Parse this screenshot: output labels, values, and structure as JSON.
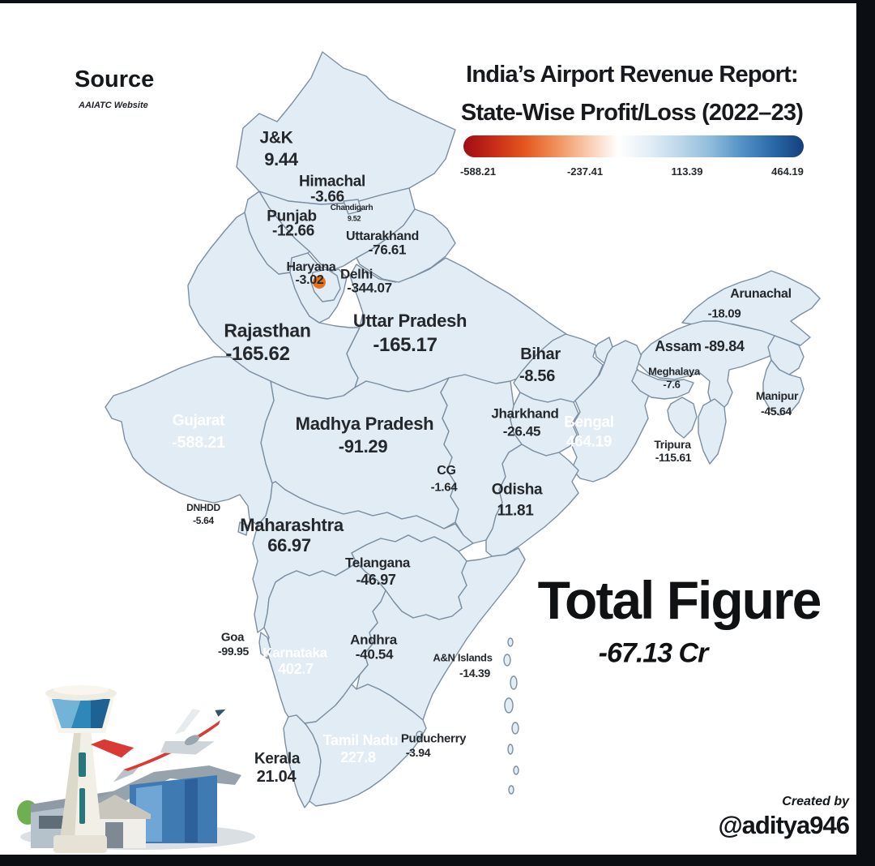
{
  "frame": {
    "bg": "#0b0e12",
    "card_bg": "#ffffff"
  },
  "source": {
    "label": "Source",
    "sub": "AAIATC Website"
  },
  "title": {
    "line1": "India’s Airport Revenue Report:",
    "line2": "State-Wise Profit/Loss (2022–23)"
  },
  "legend": {
    "ticks": [
      "-588.21",
      "-237.41",
      "113.39",
      "464.19"
    ],
    "gradient": [
      "#9d0e15",
      "#c92c18",
      "#e4581f",
      "#f0905c",
      "#f9c9ad",
      "#ffffff",
      "#e3eef6",
      "#bcd7ea",
      "#8fbcdb",
      "#5391c6",
      "#2a69a8",
      "#143f7c"
    ]
  },
  "total": {
    "label": "Total Figure",
    "value": "-67.13 Cr"
  },
  "credit": {
    "line1": "Created by",
    "line2": "@aditya946"
  },
  "map": {
    "delhi_dot": "#e8721c",
    "other_regions": {
      "sikkim": "#d0e0ed",
      "nagaland": "#cddde9",
      "mizoram": "#dbe6ee",
      "an_islands": "#e2ecf4",
      "chandigarh_patch": "#bdd5e7",
      "delhi_patch": "#f0b493",
      "dnhdd_patch": "#f3cdb2",
      "goa_patch": "#f6d8c3",
      "puducherry_dot": "#dbe7f1"
    },
    "states": [
      {
        "id": "jk",
        "name": "J&K",
        "value": "9.44",
        "fill": "#c5d8e7"
      },
      {
        "id": "himachal",
        "name": "Himachal",
        "value": "-3.66",
        "fill": "#caddea"
      },
      {
        "id": "chandigarh",
        "name": "Chandigarh",
        "value": "9.52",
        "fill": "#bdd5e7"
      },
      {
        "id": "punjab",
        "name": "Punjab",
        "value": "-12.66",
        "fill": "#cadce9"
      },
      {
        "id": "uttarakhand",
        "name": "Uttarakhand",
        "value": "-76.61",
        "fill": "#f8f1ea"
      },
      {
        "id": "haryana",
        "name": "Haryana",
        "value": "-3.02",
        "fill": "#d3e2ee"
      },
      {
        "id": "delhi",
        "name": "Delhi",
        "value": "-344.07",
        "fill": "#f0b493"
      },
      {
        "id": "rajasthan",
        "name": "Rajasthan",
        "value": "-165.62",
        "fill": "#f3b496"
      },
      {
        "id": "up",
        "name": "Uttar Pradesh",
        "value": "-165.17",
        "fill": "#f2b294"
      },
      {
        "id": "bihar",
        "name": "Bihar",
        "value": "-8.56",
        "fill": "#c6daeb"
      },
      {
        "id": "gujarat",
        "name": "Gujarat",
        "value": "-588.21",
        "fill": "#b2131a"
      },
      {
        "id": "mp",
        "name": "Madhya Pradesh",
        "value": "-91.29",
        "fill": "#f9e9df"
      },
      {
        "id": "jharkhand",
        "name": "Jharkhand",
        "value": "-26.45",
        "fill": "#dfeaf3"
      },
      {
        "id": "bengal",
        "name": "Bengal",
        "value": "464.19",
        "fill": "#15417e"
      },
      {
        "id": "cg",
        "name": "CG",
        "value": "-1.64",
        "fill": "#dde8f1"
      },
      {
        "id": "odisha",
        "name": "Odisha",
        "value": "11.81",
        "fill": "#cddbe9"
      },
      {
        "id": "dnhdd",
        "name": "DNHDD",
        "value": "-5.64",
        "fill": "#f3cdb2"
      },
      {
        "id": "maharashtra",
        "name": "Maharashtra",
        "value": "66.97",
        "fill": "#abcce2"
      },
      {
        "id": "telangana",
        "name": "Telangana",
        "value": "-46.97",
        "fill": "#ebf1f6"
      },
      {
        "id": "goa",
        "name": "Goa",
        "value": "-99.95",
        "fill": "#f6d8c3"
      },
      {
        "id": "karnataka",
        "name": "Karnataka",
        "value": "402.7",
        "fill": "#3071b4"
      },
      {
        "id": "andhra",
        "name": "Andhra",
        "value": "-40.54",
        "fill": "#e0ebf3"
      },
      {
        "id": "an",
        "name": "A&N Islands",
        "value": "-14.39",
        "fill": "#e2ecf4"
      },
      {
        "id": "tamilnadu",
        "name": "Tamil Nadu",
        "value": "227.8",
        "fill": "#619ed2"
      },
      {
        "id": "puducherry",
        "name": "Puducherry",
        "value": "-3.94",
        "fill": "#d8e6f0"
      },
      {
        "id": "kerala",
        "name": "Kerala",
        "value": "21.04",
        "fill": "#d9e7f1"
      },
      {
        "id": "arunachal",
        "name": "Arunachal",
        "value": "-18.09",
        "fill": "#cbddea"
      },
      {
        "id": "assam",
        "name": "Assam",
        "value": "-89.84",
        "fill": "#f7e4d4"
      },
      {
        "id": "meghalaya",
        "name": "Meghalaya",
        "value": "-7.6",
        "fill": "#d2e1ec"
      },
      {
        "id": "manipur",
        "name": "Manipur",
        "value": "-45.64",
        "fill": "#e8edf2"
      },
      {
        "id": "tripura",
        "name": "Tripura",
        "value": "-115.61",
        "fill": "#f3c5a6"
      }
    ]
  }
}
